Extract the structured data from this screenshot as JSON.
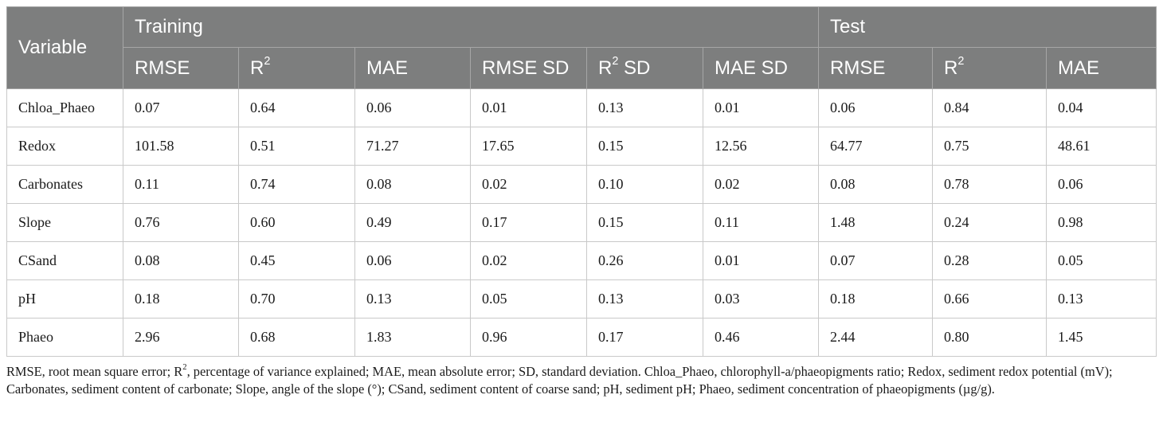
{
  "header": {
    "variable": "Variable",
    "training": "Training",
    "test": "Test",
    "columns": {
      "train_rmse": "RMSE",
      "train_r2_base": "R",
      "train_r2_sup": "2",
      "train_mae": "MAE",
      "train_rmse_sd": "RMSE SD",
      "train_r2sd_base": "R",
      "train_r2sd_sup": "2",
      "train_r2sd_suffix": " SD",
      "train_mae_sd": "MAE SD",
      "test_rmse": "RMSE",
      "test_r2_base": "R",
      "test_r2_sup": "2",
      "test_mae": "MAE"
    }
  },
  "rows": [
    {
      "variable": "Chloa_Phaeo",
      "train_rmse": "0.07",
      "train_r2": "0.64",
      "train_mae": "0.06",
      "train_rmse_sd": "0.01",
      "train_r2_sd": "0.13",
      "train_mae_sd": "0.01",
      "test_rmse": "0.06",
      "test_r2": "0.84",
      "test_mae": "0.04"
    },
    {
      "variable": "Redox",
      "train_rmse": "101.58",
      "train_r2": "0.51",
      "train_mae": "71.27",
      "train_rmse_sd": "17.65",
      "train_r2_sd": "0.15",
      "train_mae_sd": "12.56",
      "test_rmse": "64.77",
      "test_r2": "0.75",
      "test_mae": "48.61"
    },
    {
      "variable": "Carbonates",
      "train_rmse": "0.11",
      "train_r2": "0.74",
      "train_mae": "0.08",
      "train_rmse_sd": "0.02",
      "train_r2_sd": "0.10",
      "train_mae_sd": "0.02",
      "test_rmse": "0.08",
      "test_r2": "0.78",
      "test_mae": "0.06"
    },
    {
      "variable": "Slope",
      "train_rmse": "0.76",
      "train_r2": "0.60",
      "train_mae": "0.49",
      "train_rmse_sd": "0.17",
      "train_r2_sd": "0.15",
      "train_mae_sd": "0.11",
      "test_rmse": "1.48",
      "test_r2": "0.24",
      "test_mae": "0.98"
    },
    {
      "variable": "CSand",
      "train_rmse": "0.08",
      "train_r2": "0.45",
      "train_mae": "0.06",
      "train_rmse_sd": "0.02",
      "train_r2_sd": "0.26",
      "train_mae_sd": "0.01",
      "test_rmse": "0.07",
      "test_r2": "0.28",
      "test_mae": "0.05"
    },
    {
      "variable": "pH",
      "train_rmse": "0.18",
      "train_r2": "0.70",
      "train_mae": "0.13",
      "train_rmse_sd": "0.05",
      "train_r2_sd": "0.13",
      "train_mae_sd": "0.03",
      "test_rmse": "0.18",
      "test_r2": "0.66",
      "test_mae": "0.13"
    },
    {
      "variable": "Phaeo",
      "train_rmse": "2.96",
      "train_r2": "0.68",
      "train_mae": "1.83",
      "train_rmse_sd": "0.96",
      "train_r2_sd": "0.17",
      "train_mae_sd": "0.46",
      "test_rmse": "2.44",
      "test_r2": "0.80",
      "test_mae": "1.45"
    }
  ],
  "footnote": {
    "part1": "RMSE, root mean square error; R",
    "sup": "2",
    "part2": ", percentage of variance explained; MAE, mean absolute error; SD, standard deviation. Chloa_Phaeo, chlorophyll-a/phaeopigments ratio; Redox, sediment redox potential (mV); Carbonates, sediment content of carbonate; Slope, angle of the slope (°); CSand, sediment content of coarse sand; pH, sediment pH; Phaeo, sediment concentration of phaeopigments (µg/g)."
  },
  "colors": {
    "header_bg": "#7d7e7e",
    "header_text": "#ffffff",
    "grid": "#c9c9c9"
  }
}
